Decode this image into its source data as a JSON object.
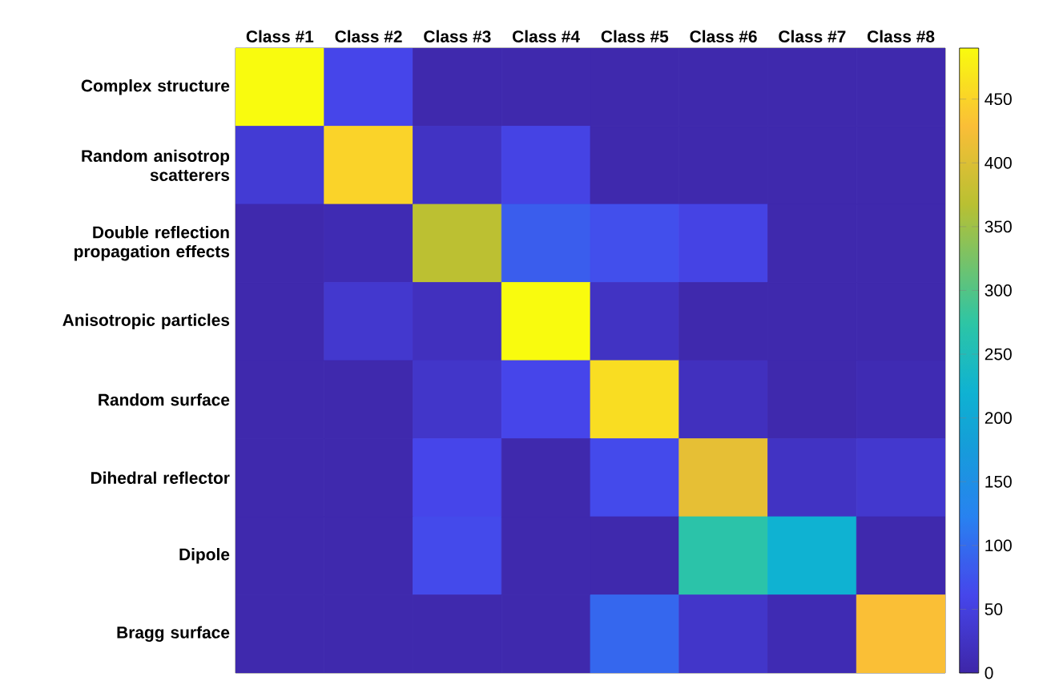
{
  "chart_data": {
    "type": "heatmap",
    "categories": [
      "Class #1",
      "Class #2",
      "Class #3",
      "Class #4",
      "Class #5",
      "Class #6",
      "Class #7",
      "Class #8"
    ],
    "y_categories": [
      "Complex structure",
      "Random anisotrop scatterers",
      "Double reflection propagation effects",
      "Anisotropic particles",
      "Random surface",
      "Dihedral reflector",
      "Dipole",
      "Bragg surface"
    ],
    "cells": [
      [
        490,
        60,
        5,
        5,
        5,
        5,
        5,
        5
      ],
      [
        40,
        450,
        25,
        55,
        5,
        5,
        5,
        5
      ],
      [
        5,
        10,
        370,
        85,
        70,
        55,
        5,
        5
      ],
      [
        5,
        35,
        20,
        490,
        25,
        5,
        5,
        5
      ],
      [
        5,
        5,
        30,
        60,
        460,
        20,
        5,
        10
      ],
      [
        5,
        5,
        60,
        5,
        65,
        410,
        25,
        35
      ],
      [
        5,
        5,
        65,
        5,
        5,
        270,
        220,
        5
      ],
      [
        5,
        5,
        5,
        5,
        95,
        30,
        10,
        430
      ]
    ],
    "clim": [
      0,
      490
    ],
    "cticks": [
      0,
      50,
      100,
      150,
      200,
      250,
      300,
      350,
      400,
      450
    ]
  }
}
